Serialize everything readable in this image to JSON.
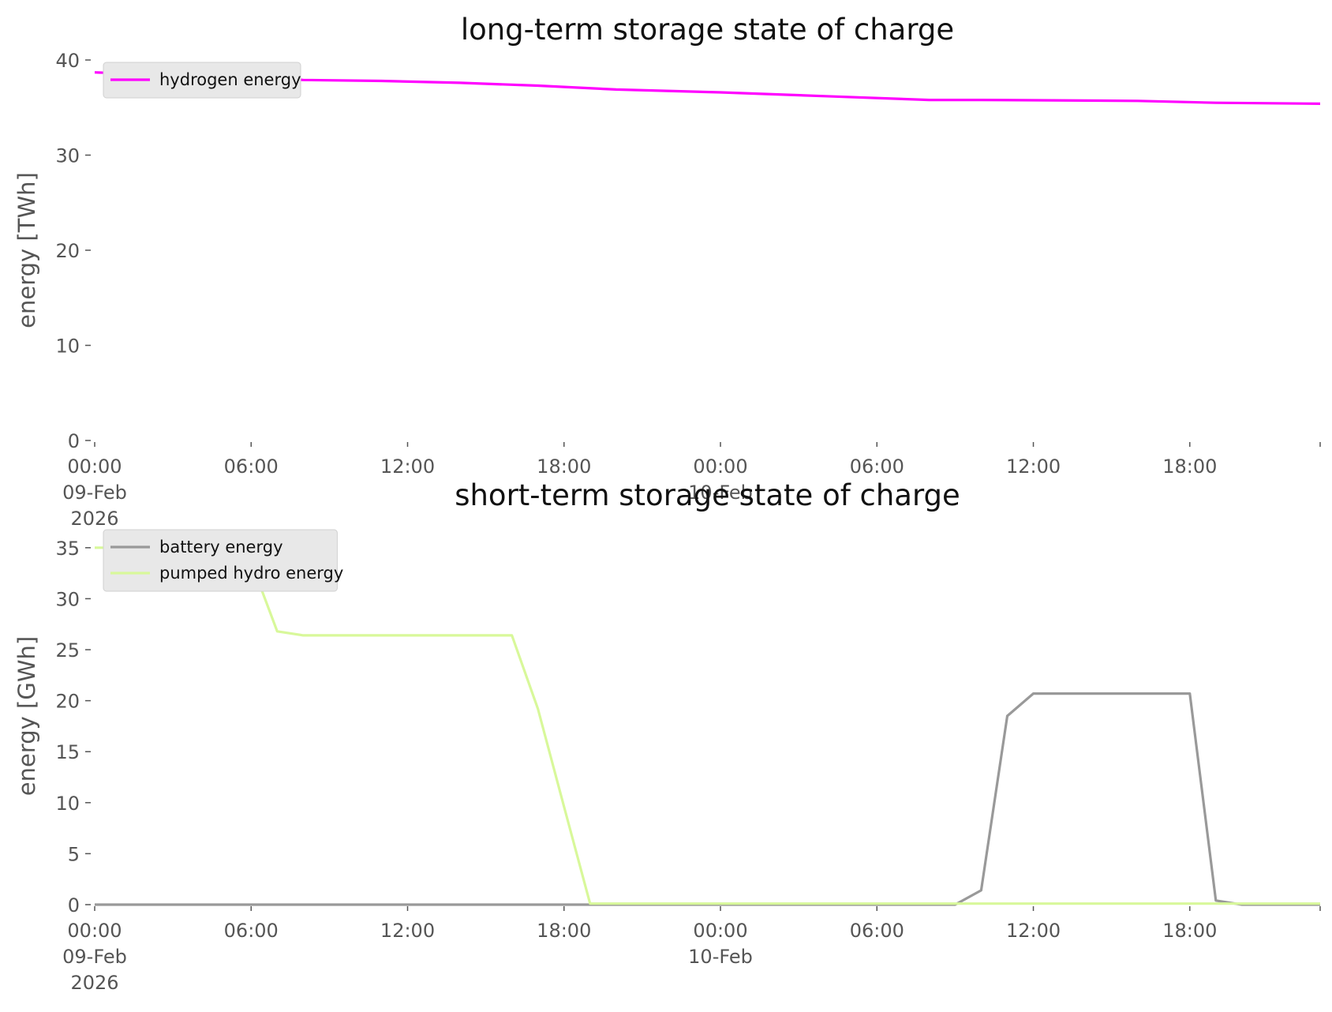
{
  "chart_data": [
    {
      "type": "line",
      "title": "long-term storage state of charge",
      "xlabel": "",
      "ylabel": "energy [TWh]",
      "xlim": [
        "2026-02-09 00:00",
        "2026-02-10 23:00"
      ],
      "ylim": [
        0,
        40
      ],
      "yticks": [
        0,
        10,
        20,
        30,
        40
      ],
      "xticks": [
        {
          "at": "2026-02-09 00:00",
          "lines": [
            "00:00",
            "09-Feb",
            "2026"
          ]
        },
        {
          "at": "2026-02-09 06:00",
          "lines": [
            "06:00"
          ]
        },
        {
          "at": "2026-02-09 12:00",
          "lines": [
            "12:00"
          ]
        },
        {
          "at": "2026-02-09 18:00",
          "lines": [
            "18:00"
          ]
        },
        {
          "at": "2026-02-10 00:00",
          "lines": [
            "00:00",
            "10-Feb"
          ]
        },
        {
          "at": "2026-02-10 06:00",
          "lines": [
            "06:00"
          ]
        },
        {
          "at": "2026-02-10 12:00",
          "lines": [
            "12:00"
          ]
        },
        {
          "at": "2026-02-10 18:00",
          "lines": [
            "18:00"
          ]
        }
      ],
      "grid": false,
      "legend_position": "top-left",
      "series": [
        {
          "name": "hydrogen energy",
          "color": "#ff00ff",
          "points": [
            [
              "2026-02-09 00:00",
              38.7
            ],
            [
              "2026-02-09 02:00",
              38.5
            ],
            [
              "2026-02-09 05:00",
              38.3
            ],
            [
              "2026-02-09 08:00",
              37.9
            ],
            [
              "2026-02-09 11:00",
              37.8
            ],
            [
              "2026-02-09 14:00",
              37.6
            ],
            [
              "2026-02-09 17:00",
              37.3
            ],
            [
              "2026-02-09 20:00",
              36.9
            ],
            [
              "2026-02-10 00:00",
              36.6
            ],
            [
              "2026-02-10 04:00",
              36.2
            ],
            [
              "2026-02-10 08:00",
              35.8
            ],
            [
              "2026-02-10 10:00",
              35.8
            ],
            [
              "2026-02-10 16:00",
              35.7
            ],
            [
              "2026-02-10 19:00",
              35.5
            ],
            [
              "2026-02-10 23:00",
              35.4
            ]
          ]
        }
      ]
    },
    {
      "type": "line",
      "title": "short-term storage state of charge",
      "xlabel": "",
      "ylabel": "energy [GWh]",
      "xlim": [
        "2026-02-09 00:00",
        "2026-02-10 23:00"
      ],
      "ylim": [
        0,
        37
      ],
      "yticks": [
        0,
        5,
        10,
        15,
        20,
        25,
        30,
        35
      ],
      "xticks": [
        {
          "at": "2026-02-09 00:00",
          "lines": [
            "00:00",
            "09-Feb",
            "2026"
          ]
        },
        {
          "at": "2026-02-09 06:00",
          "lines": [
            "06:00"
          ]
        },
        {
          "at": "2026-02-09 12:00",
          "lines": [
            "12:00"
          ]
        },
        {
          "at": "2026-02-09 18:00",
          "lines": [
            "18:00"
          ]
        },
        {
          "at": "2026-02-10 00:00",
          "lines": [
            "00:00",
            "10-Feb"
          ]
        },
        {
          "at": "2026-02-10 06:00",
          "lines": [
            "06:00"
          ]
        },
        {
          "at": "2026-02-10 12:00",
          "lines": [
            "12:00"
          ]
        },
        {
          "at": "2026-02-10 18:00",
          "lines": [
            "18:00"
          ]
        }
      ],
      "grid": false,
      "legend_position": "top-left",
      "series": [
        {
          "name": "battery energy",
          "color": "#999999",
          "points": [
            [
              "2026-02-09 00:00",
              0
            ],
            [
              "2026-02-10 09:00",
              0
            ],
            [
              "2026-02-10 10:00",
              1.4
            ],
            [
              "2026-02-10 11:00",
              18.5
            ],
            [
              "2026-02-10 12:00",
              20.7
            ],
            [
              "2026-02-10 13:00",
              20.7
            ],
            [
              "2026-02-10 14:00",
              20.7
            ],
            [
              "2026-02-10 15:00",
              20.7
            ],
            [
              "2026-02-10 16:00",
              20.7
            ],
            [
              "2026-02-10 17:00",
              20.7
            ],
            [
              "2026-02-10 18:00",
              20.7
            ],
            [
              "2026-02-10 19:00",
              0.4
            ],
            [
              "2026-02-10 20:00",
              0
            ],
            [
              "2026-02-10 23:00",
              0
            ]
          ]
        },
        {
          "name": "pumped hydro energy",
          "color": "#d8f89a",
          "points": [
            [
              "2026-02-09 00:00",
              35
            ],
            [
              "2026-02-09 01:00",
              35
            ],
            [
              "2026-02-09 02:00",
              35
            ],
            [
              "2026-02-09 03:00",
              35
            ],
            [
              "2026-02-09 04:00",
              35
            ],
            [
              "2026-02-09 05:00",
              35
            ],
            [
              "2026-02-09 06:00",
              33.6
            ],
            [
              "2026-02-09 07:00",
              26.8
            ],
            [
              "2026-02-09 08:00",
              26.4
            ],
            [
              "2026-02-09 09:00",
              26.4
            ],
            [
              "2026-02-09 10:00",
              26.4
            ],
            [
              "2026-02-09 11:00",
              26.4
            ],
            [
              "2026-02-09 12:00",
              26.4
            ],
            [
              "2026-02-09 13:00",
              26.4
            ],
            [
              "2026-02-09 14:00",
              26.4
            ],
            [
              "2026-02-09 15:00",
              26.4
            ],
            [
              "2026-02-09 16:00",
              26.4
            ],
            [
              "2026-02-09 17:00",
              19.2
            ],
            [
              "2026-02-09 18:00",
              9.6
            ],
            [
              "2026-02-09 19:00",
              0.1
            ],
            [
              "2026-02-10 00:00",
              0.1
            ],
            [
              "2026-02-10 12:00",
              0.1
            ],
            [
              "2026-02-10 23:00",
              0.1
            ]
          ]
        }
      ]
    }
  ]
}
